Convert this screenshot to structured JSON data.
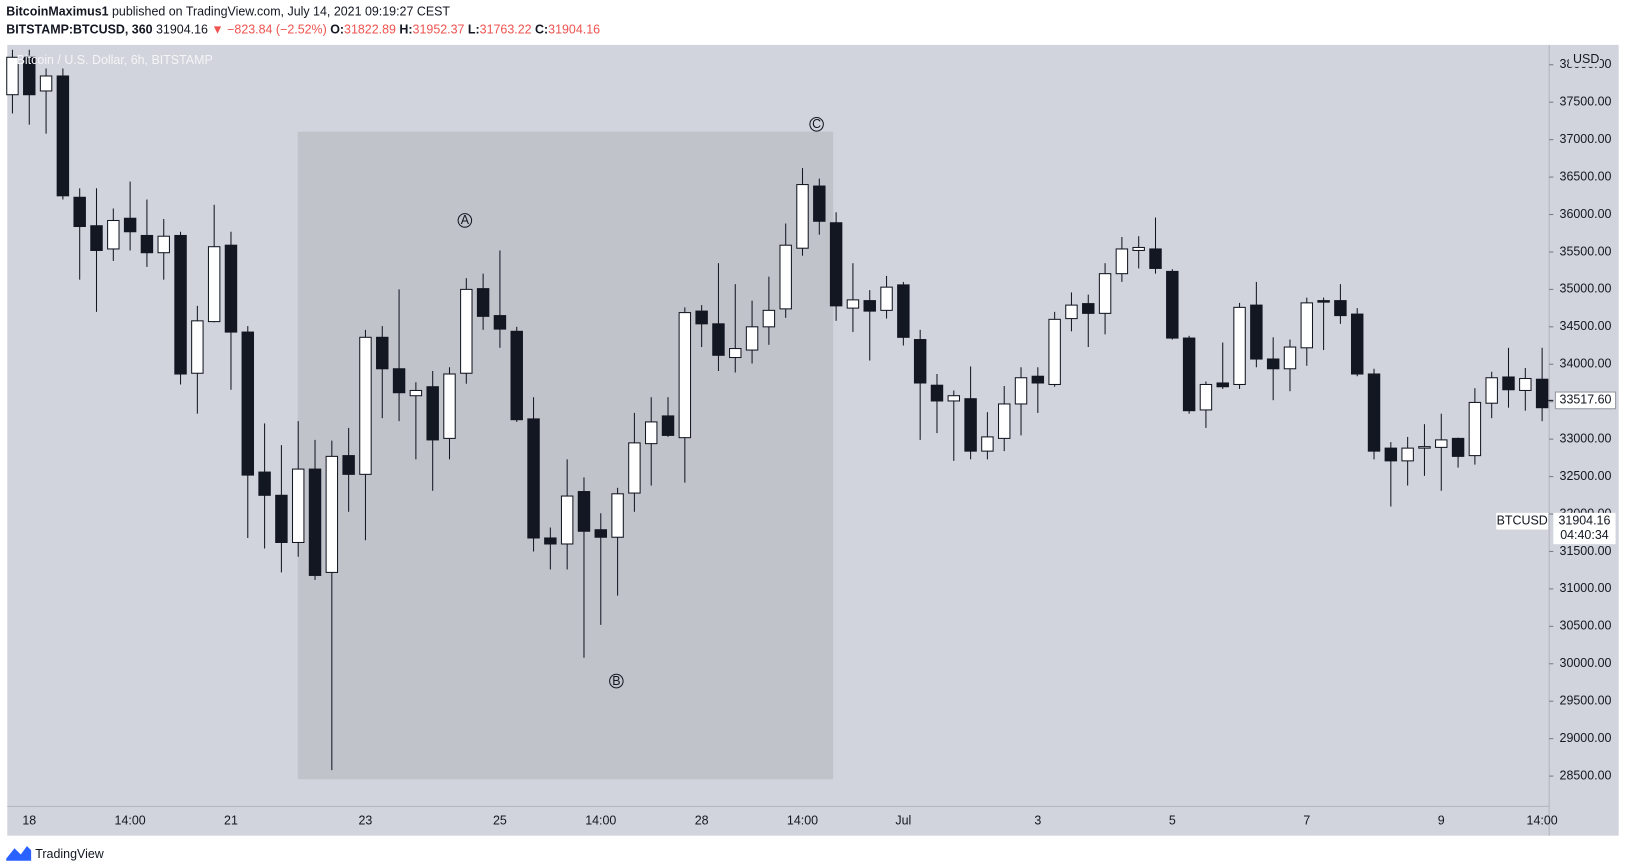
{
  "header": {
    "author": "BitcoinMaximus1",
    "published": "published on TradingView.com, July 14, 2021 09:19:27 CEST",
    "symbol": "BITSTAMP:BTCUSD, 360",
    "last": "31904.16",
    "change": "▼ −823.84 (−2.52%)",
    "open_label": "O:",
    "open": "31822.89",
    "high_label": "H:",
    "high": "31952.37",
    "low_label": "L:",
    "low": "31763.22",
    "close_label": "C:",
    "close": "31904.16"
  },
  "footer": {
    "brand": "TradingView"
  },
  "chart_data": {
    "type": "candlestick",
    "title": "Bitcoin / U.S. Dollar, 6h, BITSTAMP",
    "y_unit": "USD",
    "up_color": "#ffffff",
    "down_color": "#131722",
    "grid": false,
    "categories": [
      null,
      "18",
      null,
      null,
      null,
      null,
      null,
      "14:00",
      null,
      null,
      null,
      null,
      null,
      "21",
      null,
      null,
      null,
      null,
      null,
      null,
      null,
      "23",
      null,
      null,
      null,
      null,
      null,
      null,
      null,
      "25",
      null,
      null,
      null,
      null,
      null,
      "14:00",
      null,
      null,
      null,
      null,
      null,
      "28",
      null,
      null,
      null,
      null,
      null,
      "14:00",
      null,
      null,
      null,
      null,
      null,
      "Jul",
      null,
      null,
      null,
      null,
      null,
      null,
      null,
      "3",
      null,
      null,
      null,
      null,
      null,
      null,
      null,
      "5",
      null,
      null,
      null,
      null,
      null,
      null,
      null,
      "7",
      null,
      null,
      null,
      null,
      null,
      null,
      null,
      "9",
      null,
      null,
      null,
      null,
      null,
      "14:00"
    ],
    "open": [
      37600,
      38100,
      37650,
      37850,
      36230,
      35850,
      35540,
      35950,
      35720,
      35490,
      35720,
      33880,
      34570,
      35590,
      34430,
      32560,
      32250,
      31620,
      32600,
      31220,
      32780,
      32530,
      34360,
      33940,
      33580,
      33700,
      33010,
      33880,
      35010,
      34650,
      34440,
      33270,
      31680,
      31600,
      32300,
      31790,
      31690,
      32280,
      32940,
      33310,
      33020,
      34710,
      34540,
      34090,
      34190,
      34500,
      34740,
      35550,
      36380,
      35890,
      34750,
      34850,
      34720,
      35060,
      34330,
      33720,
      33510,
      33540,
      32840,
      33010,
      33470,
      33840,
      33730,
      34610,
      34810,
      34680,
      35210,
      35520,
      35540,
      35240,
      34350,
      33390,
      33750,
      33730,
      34790,
      34070,
      33940,
      34220,
      34850,
      34850,
      34670,
      33870,
      32880,
      32710,
      32880,
      32890,
      33010,
      32780,
      33480,
      33830,
      33650,
      33800
    ],
    "high": [
      38200,
      38200,
      37950,
      37950,
      36350,
      36350,
      36080,
      36440,
      36200,
      35940,
      35770,
      34780,
      36130,
      35770,
      34510,
      33210,
      32920,
      33240,
      32990,
      32980,
      33150,
      34460,
      34510,
      35000,
      33760,
      33910,
      33960,
      35150,
      35210,
      35520,
      34500,
      33560,
      31820,
      32730,
      32490,
      32010,
      32350,
      33350,
      33560,
      33560,
      34760,
      34790,
      35350,
      35070,
      34850,
      35170,
      35880,
      36620,
      36480,
      36030,
      35350,
      34990,
      35180,
      35100,
      34460,
      33870,
      33650,
      33970,
      33360,
      33710,
      33960,
      33960,
      34700,
      34960,
      34930,
      35350,
      35700,
      35710,
      35960,
      35270,
      34380,
      33770,
      34290,
      34820,
      35100,
      34360,
      34330,
      34890,
      34890,
      35070,
      34750,
      33940,
      32960,
      33030,
      33200,
      33340,
      33020,
      33680,
      33900,
      34220,
      33950,
      34220
    ],
    "low": [
      37350,
      37200,
      37080,
      36200,
      35130,
      34700,
      35380,
      35520,
      35300,
      35130,
      33730,
      33340,
      34560,
      33660,
      31680,
      31540,
      31220,
      31430,
      31120,
      28580,
      32030,
      31650,
      33280,
      33240,
      32730,
      32310,
      32730,
      33740,
      34460,
      34220,
      33230,
      31500,
      31260,
      31260,
      30080,
      30520,
      30910,
      32030,
      32380,
      33030,
      32420,
      34230,
      33910,
      33890,
      34010,
      34260,
      34620,
      35450,
      35730,
      34580,
      34430,
      34050,
      34610,
      34250,
      32990,
      33080,
      32710,
      32730,
      32730,
      32840,
      33050,
      33350,
      33700,
      34440,
      34230,
      34400,
      35100,
      35280,
      35210,
      34330,
      33340,
      33150,
      33670,
      33670,
      33960,
      33520,
      33640,
      33980,
      34190,
      34540,
      33840,
      32730,
      32100,
      32380,
      32510,
      32310,
      32620,
      32660,
      33280,
      33420,
      33380,
      33240
    ],
    "close": [
      38100,
      37600,
      37850,
      36250,
      35840,
      35520,
      35920,
      35770,
      35490,
      35710,
      33870,
      34580,
      35570,
      34430,
      32520,
      32250,
      31620,
      32600,
      31180,
      32770,
      32530,
      34360,
      33940,
      33620,
      33650,
      32990,
      33870,
      35000,
      34640,
      34470,
      33260,
      31680,
      31600,
      32240,
      31770,
      31690,
      32270,
      32950,
      33230,
      33050,
      34690,
      34540,
      34120,
      34210,
      34500,
      34720,
      35590,
      36400,
      35910,
      34780,
      34860,
      34710,
      35030,
      34360,
      33750,
      33510,
      33580,
      32840,
      33030,
      33470,
      33820,
      33750,
      34600,
      34790,
      34680,
      35210,
      35540,
      35560,
      35280,
      34350,
      33380,
      33730,
      33700,
      34760,
      34070,
      33940,
      34230,
      34820,
      34830,
      34650,
      33870,
      32840,
      32710,
      32880,
      32900,
      32990,
      32770,
      33490,
      33820,
      33660,
      33810,
      33420
    ],
    "ylim": [
      28095,
      38265
    ],
    "yticks": [
      {
        "value": 28500,
        "label": "28500.00"
      },
      {
        "value": 29000,
        "label": "29000.00"
      },
      {
        "value": 29500,
        "label": "29500.00"
      },
      {
        "value": 30000,
        "label": "30000.00"
      },
      {
        "value": 30500,
        "label": "30500.00"
      },
      {
        "value": 31000,
        "label": "31000.00"
      },
      {
        "value": 31500,
        "label": "31500.00"
      },
      {
        "value": 32000,
        "label": "32000.00"
      },
      {
        "value": 32500,
        "label": "32500.00"
      },
      {
        "value": 33000,
        "label": "33000.00"
      },
      {
        "value": 33500,
        "label": "33500.00"
      },
      {
        "value": 34000,
        "label": "34000.00"
      },
      {
        "value": 34500,
        "label": "34500.00"
      },
      {
        "value": 35000,
        "label": "35000.00"
      },
      {
        "value": 35500,
        "label": "35500.00"
      },
      {
        "value": 36000,
        "label": "36000.00"
      },
      {
        "value": 36500,
        "label": "36500.00"
      },
      {
        "value": 37000,
        "label": "37000.00"
      },
      {
        "value": 37500,
        "label": "37500.00"
      },
      {
        "value": 38000,
        "label": "38000.00"
      }
    ],
    "price_line": {
      "value": 33517.6,
      "label": "33517.60"
    },
    "last_price": {
      "symbol": "BTCUSD",
      "value": 31904.16,
      "label": "31904.16",
      "countdown": "04:40:34"
    },
    "annotations": [
      "A",
      "B",
      "C"
    ]
  }
}
